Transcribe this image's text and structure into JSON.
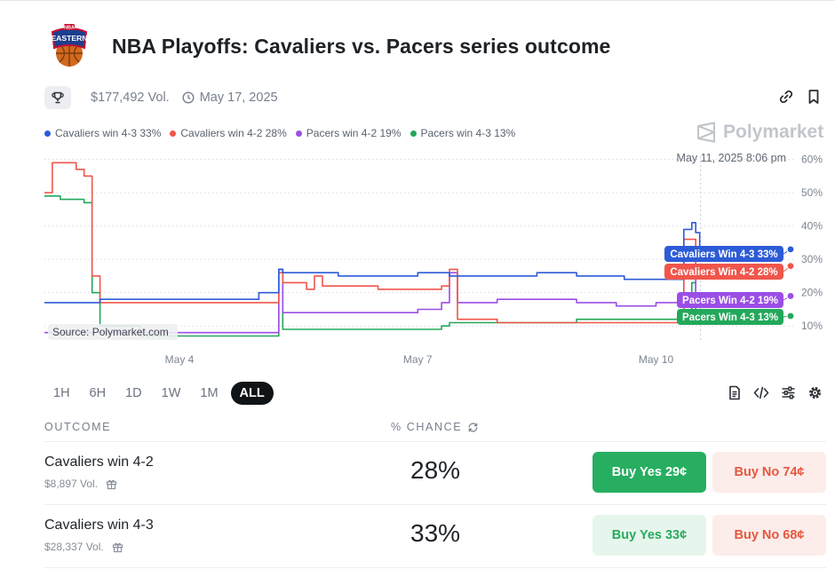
{
  "market": {
    "title": "NBA Playoffs: Cavaliers vs. Pacers series outcome",
    "logo_text": "EASTERN",
    "logo_small_text": "NBA",
    "volume": "$177,492 Vol.",
    "end_date": "May 17, 2025"
  },
  "brand": {
    "name": "Polymarket"
  },
  "colors": {
    "blue": "#2d5bd7",
    "red": "#f0564b",
    "purple": "#9a4ee6",
    "green": "#23a85a",
    "buy_yes": "#27ae60",
    "buy_no": "#e3583f"
  },
  "legend": [
    {
      "label": "Cavaliers win 4-3 33%",
      "color": "#2d5bd7"
    },
    {
      "label": "Cavaliers win 4-2 28%",
      "color": "#f0564b"
    },
    {
      "label": "Pacers win 4-2 19%",
      "color": "#9a4ee6"
    },
    {
      "label": "Pacers win 4-3 13%",
      "color": "#23a85a"
    }
  ],
  "chart_data": {
    "type": "line",
    "hover_date": "May 11, 2025 8:06 pm",
    "source_label": "Source: Polymarket.com",
    "x_ticks": [
      {
        "label": "May 4",
        "day": 4
      },
      {
        "label": "May 7",
        "day": 7
      },
      {
        "label": "May 10",
        "day": 10
      }
    ],
    "y_ticks": [
      {
        "label": "10%",
        "value": 10
      },
      {
        "label": "20%",
        "value": 20
      },
      {
        "label": "30%",
        "value": 30
      },
      {
        "label": "40%",
        "value": 40
      },
      {
        "label": "50%",
        "value": 50
      },
      {
        "label": "60%",
        "value": 60
      }
    ],
    "ylim": [
      5,
      62
    ],
    "xlim": [
      2.3,
      11.75
    ],
    "grid": true,
    "series": [
      {
        "name": "Cavaliers Win 4-3 33%",
        "color": "#2d5bd7",
        "points": [
          [
            2.3,
            17
          ],
          [
            2.8,
            17
          ],
          [
            3.0,
            18
          ],
          [
            4.0,
            18
          ],
          [
            4.9,
            18
          ],
          [
            5.0,
            20
          ],
          [
            5.2,
            20
          ],
          [
            5.25,
            27
          ],
          [
            5.3,
            26
          ],
          [
            5.5,
            26
          ],
          [
            6.0,
            25
          ],
          [
            6.5,
            25
          ],
          [
            7.0,
            26
          ],
          [
            7.3,
            26
          ],
          [
            7.4,
            25
          ],
          [
            8.0,
            25
          ],
          [
            8.5,
            26
          ],
          [
            9.0,
            25
          ],
          [
            9.5,
            25
          ],
          [
            9.6,
            24
          ],
          [
            10.0,
            24
          ],
          [
            10.3,
            24
          ],
          [
            10.35,
            39
          ],
          [
            10.45,
            41
          ],
          [
            10.5,
            38
          ],
          [
            10.55,
            33
          ]
        ]
      },
      {
        "name": "Cavaliers Win 4-2 28%",
        "color": "#f0564b",
        "points": [
          [
            2.3,
            50
          ],
          [
            2.4,
            59
          ],
          [
            2.6,
            59
          ],
          [
            2.7,
            57
          ],
          [
            2.8,
            55
          ],
          [
            2.9,
            25
          ],
          [
            3.0,
            17
          ],
          [
            4.0,
            17
          ],
          [
            5.0,
            17
          ],
          [
            5.2,
            17
          ],
          [
            5.25,
            26
          ],
          [
            5.3,
            23
          ],
          [
            5.5,
            23
          ],
          [
            5.6,
            21
          ],
          [
            5.7,
            25
          ],
          [
            5.8,
            22
          ],
          [
            6.0,
            22
          ],
          [
            6.5,
            21
          ],
          [
            7.0,
            21
          ],
          [
            7.3,
            22
          ],
          [
            7.4,
            27
          ],
          [
            7.5,
            12
          ],
          [
            8.0,
            11
          ],
          [
            8.5,
            11
          ],
          [
            9.0,
            11
          ],
          [
            9.5,
            11
          ],
          [
            10.0,
            11
          ],
          [
            10.3,
            11
          ],
          [
            10.35,
            36
          ],
          [
            10.45,
            36
          ],
          [
            10.5,
            28
          ]
        ]
      },
      {
        "name": "Pacers Win 4-2 19%",
        "color": "#9a4ee6",
        "points": [
          [
            2.3,
            8
          ],
          [
            3.0,
            8
          ],
          [
            4.0,
            8
          ],
          [
            5.2,
            8
          ],
          [
            5.25,
            27
          ],
          [
            5.3,
            14
          ],
          [
            5.5,
            14
          ],
          [
            6.0,
            14
          ],
          [
            6.5,
            14
          ],
          [
            7.0,
            15
          ],
          [
            7.2,
            15
          ],
          [
            7.3,
            17
          ],
          [
            7.4,
            26
          ],
          [
            7.5,
            17
          ],
          [
            8.0,
            18
          ],
          [
            8.5,
            18
          ],
          [
            9.0,
            17
          ],
          [
            9.5,
            16
          ],
          [
            10.0,
            17
          ],
          [
            10.3,
            17
          ],
          [
            10.35,
            33
          ],
          [
            10.45,
            31
          ],
          [
            10.5,
            19
          ]
        ]
      },
      {
        "name": "Pacers Win 4-3 13%",
        "color": "#23a85a",
        "points": [
          [
            2.3,
            49
          ],
          [
            2.5,
            48
          ],
          [
            2.7,
            48
          ],
          [
            2.8,
            47
          ],
          [
            2.9,
            20
          ],
          [
            3.0,
            10
          ],
          [
            3.5,
            7
          ],
          [
            4.0,
            7
          ],
          [
            5.2,
            7
          ],
          [
            5.25,
            27
          ],
          [
            5.3,
            9
          ],
          [
            6.0,
            9
          ],
          [
            7.0,
            9
          ],
          [
            7.3,
            10
          ],
          [
            7.4,
            11
          ],
          [
            8.0,
            11
          ],
          [
            8.5,
            11
          ],
          [
            9.0,
            12
          ],
          [
            9.5,
            12
          ],
          [
            10.0,
            12
          ],
          [
            10.3,
            12
          ],
          [
            10.35,
            13
          ],
          [
            10.45,
            23
          ],
          [
            10.5,
            13
          ]
        ]
      }
    ]
  },
  "time_ranges": [
    "1H",
    "6H",
    "1D",
    "1W",
    "1M",
    "ALL"
  ],
  "active_range": "ALL",
  "table": {
    "col_outcome": "OUTCOME",
    "col_chance": "% CHANCE",
    "rows": [
      {
        "name": "Cavaliers win 4-2",
        "volume": "$8,897 Vol.",
        "chance": "28%",
        "buy_yes": "Buy Yes 29¢",
        "buy_no": "Buy No 74¢"
      },
      {
        "name": "Cavaliers win 4-3",
        "volume": "$28,337 Vol.",
        "chance": "33%",
        "buy_yes": "Buy Yes 33¢",
        "buy_no": "Buy No 68¢"
      }
    ]
  }
}
